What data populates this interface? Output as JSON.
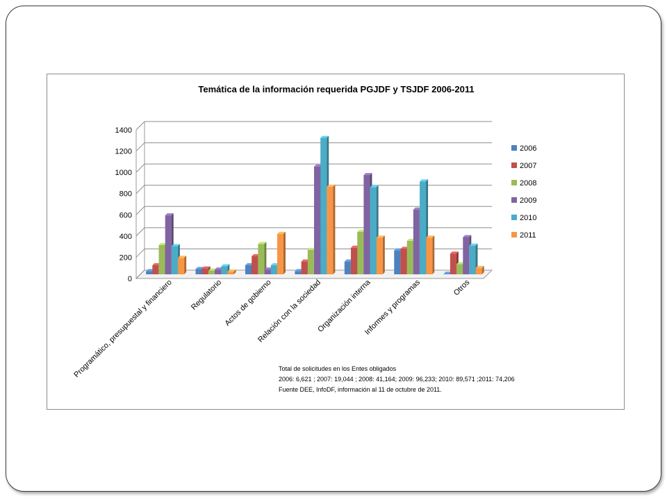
{
  "chart_data": {
    "type": "bar",
    "title": "Temática de la información requerida PGJDF y TSJDF 2006-2011",
    "categories": [
      "Programático, presupuestal y financiero",
      "Regulatorio",
      "Actos de gobierno",
      "Relación con la sociedad",
      "Organización interna",
      "Informes y programas",
      "Otros"
    ],
    "series": [
      {
        "name": "2006",
        "color": "#4f81bd",
        "values": [
          30,
          50,
          85,
          30,
          120,
          225,
          5
        ]
      },
      {
        "name": "2007",
        "color": "#c0504d",
        "values": [
          85,
          55,
          170,
          120,
          250,
          240,
          195
        ]
      },
      {
        "name": "2008",
        "color": "#9bbb59",
        "values": [
          275,
          35,
          285,
          230,
          400,
          315,
          95
        ]
      },
      {
        "name": "2009",
        "color": "#8064a2",
        "values": [
          555,
          45,
          45,
          1015,
          935,
          610,
          350
        ]
      },
      {
        "name": "2010",
        "color": "#4bacc6",
        "values": [
          265,
          75,
          85,
          1285,
          820,
          875,
          270
        ]
      },
      {
        "name": "2011",
        "color": "#f79646",
        "values": [
          155,
          25,
          380,
          825,
          345,
          345,
          60
        ]
      }
    ],
    "ylim": [
      0,
      1400
    ],
    "yticks": [
      0,
      200,
      400,
      600,
      800,
      1000,
      1200,
      1400
    ],
    "grid": true,
    "legend_position": "right",
    "notes": [
      "Total de solicitudes en los Entes obligados",
      "2006: 6,621 ; 2007: 19,044 ; 2008: 41,164; 2009: 96,233; 2010: 89,571 ;2011: 74,206",
      "Fuente DEE, InfoDF, información al 11 de octubre de 2011."
    ]
  }
}
